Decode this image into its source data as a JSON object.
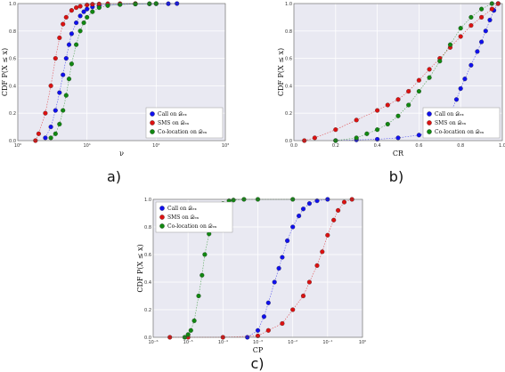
{
  "colors": {
    "call": "#1010ee",
    "sms": "#dd1111",
    "coloc": "#118811",
    "bg": "#e9e9f2",
    "grid": "#ffffff"
  },
  "captions": {
    "a": "a)",
    "b": "b)",
    "c": "c)"
  },
  "chart_data": [
    {
      "id": "a",
      "type": "scatter",
      "xscale": "log",
      "xlim": [
        1,
        1000
      ],
      "ylim": [
        0,
        1
      ],
      "xlabel": "ν",
      "ylabel": "CDF P(X ≤ x)",
      "xticks": [
        "10⁰",
        "10¹",
        "10²",
        "10³"
      ],
      "yticks": [
        "0.0",
        "0.2",
        "0.4",
        "0.6",
        "0.8",
        "1.0"
      ],
      "legend_position": "lower-right",
      "series": [
        {
          "name": "Call on 𝒟ₑₓ",
          "key": "call",
          "x": [
            2.5,
            3,
            3.5,
            4,
            4.5,
            5,
            5.5,
            6,
            7,
            8,
            9,
            10,
            12,
            15,
            20,
            30,
            50,
            80,
            100,
            150,
            200
          ],
          "y": [
            0.02,
            0.1,
            0.22,
            0.35,
            0.48,
            0.6,
            0.7,
            0.78,
            0.86,
            0.91,
            0.94,
            0.96,
            0.975,
            0.985,
            0.99,
            0.994,
            0.997,
            0.998,
            0.999,
            0.999,
            1.0
          ]
        },
        {
          "name": "SMS on 𝒟ₑₓ",
          "key": "sms",
          "x": [
            1.8,
            2,
            2.5,
            3,
            3.5,
            4,
            4.5,
            5,
            6,
            7,
            8,
            10,
            12,
            15,
            20,
            30,
            50
          ],
          "y": [
            0.0,
            0.05,
            0.2,
            0.4,
            0.6,
            0.75,
            0.85,
            0.9,
            0.95,
            0.97,
            0.98,
            0.99,
            0.995,
            0.997,
            0.999,
            0.9995,
            1.0
          ]
        },
        {
          "name": "Co-location on 𝒟ₑₓ",
          "key": "coloc",
          "x": [
            3,
            3.5,
            4,
            4.5,
            5,
            5.5,
            6,
            7,
            8,
            9,
            10,
            12,
            15,
            20,
            30,
            50,
            80,
            100
          ],
          "y": [
            0.02,
            0.05,
            0.12,
            0.22,
            0.33,
            0.45,
            0.56,
            0.7,
            0.8,
            0.86,
            0.9,
            0.94,
            0.97,
            0.985,
            0.993,
            0.997,
            0.999,
            1.0
          ]
        }
      ]
    },
    {
      "id": "b",
      "type": "scatter",
      "xscale": "linear",
      "xlim": [
        0,
        1
      ],
      "ylim": [
        0,
        1
      ],
      "xlabel": "CR",
      "ylabel": "CDF P(X ≤ x)",
      "xticks": [
        "0.0",
        "0.2",
        "0.4",
        "0.6",
        "0.8",
        "1.0"
      ],
      "yticks": [
        "0.0",
        "0.2",
        "0.4",
        "0.6",
        "0.8",
        "1.0"
      ],
      "legend_position": "lower-right",
      "series": [
        {
          "name": "Call on 𝒟ₑₓ",
          "key": "call",
          "x": [
            0.2,
            0.3,
            0.4,
            0.5,
            0.6,
            0.65,
            0.7,
            0.75,
            0.78,
            0.8,
            0.82,
            0.85,
            0.88,
            0.9,
            0.92,
            0.94,
            0.96,
            0.98
          ],
          "y": [
            0.0,
            0.005,
            0.01,
            0.02,
            0.04,
            0.06,
            0.1,
            0.2,
            0.3,
            0.38,
            0.45,
            0.55,
            0.65,
            0.72,
            0.8,
            0.88,
            0.95,
            1.0
          ]
        },
        {
          "name": "SMS on 𝒟ₑₓ",
          "key": "sms",
          "x": [
            0.05,
            0.1,
            0.2,
            0.3,
            0.4,
            0.45,
            0.5,
            0.55,
            0.6,
            0.65,
            0.7,
            0.75,
            0.8,
            0.85,
            0.9,
            0.95,
            0.98
          ],
          "y": [
            0.0,
            0.02,
            0.08,
            0.15,
            0.22,
            0.26,
            0.3,
            0.36,
            0.44,
            0.52,
            0.6,
            0.68,
            0.76,
            0.84,
            0.9,
            0.96,
            1.0
          ]
        },
        {
          "name": "Co-location on 𝒟ₑₓ",
          "key": "coloc",
          "x": [
            0.2,
            0.3,
            0.35,
            0.4,
            0.45,
            0.5,
            0.55,
            0.6,
            0.65,
            0.7,
            0.75,
            0.8,
            0.85,
            0.9,
            0.95
          ],
          "y": [
            0.0,
            0.02,
            0.05,
            0.08,
            0.12,
            0.18,
            0.26,
            0.36,
            0.46,
            0.58,
            0.7,
            0.82,
            0.9,
            0.96,
            1.0
          ]
        }
      ]
    },
    {
      "id": "c",
      "type": "scatter",
      "xscale": "log",
      "xlim": [
        1e-06,
        1
      ],
      "ylim": [
        0,
        1
      ],
      "xlabel": "CP",
      "ylabel": "CDF P(X ≤ x)",
      "xticks": [
        "10⁻⁶",
        "10⁻⁵",
        "10⁻⁴",
        "10⁻³",
        "10⁻²",
        "10⁻¹",
        "10⁰"
      ],
      "yticks": [
        "0.0",
        "0.2",
        "0.4",
        "0.6",
        "0.8",
        "1.0"
      ],
      "legend_position": "upper-left",
      "series": [
        {
          "name": "Call on 𝒟ₑₓ",
          "key": "call",
          "x": [
            0.0005,
            0.001,
            0.0015,
            0.002,
            0.003,
            0.004,
            0.005,
            0.007,
            0.01,
            0.015,
            0.02,
            0.03,
            0.05,
            0.1
          ],
          "y": [
            0.0,
            0.05,
            0.15,
            0.25,
            0.4,
            0.5,
            0.58,
            0.7,
            0.8,
            0.88,
            0.93,
            0.97,
            0.99,
            1.0
          ]
        },
        {
          "name": "SMS on 𝒟ₑₓ",
          "key": "sms",
          "x": [
            3e-06,
            1e-05,
            0.0001,
            0.001,
            0.002,
            0.005,
            0.01,
            0.02,
            0.03,
            0.05,
            0.07,
            0.1,
            0.15,
            0.2,
            0.3,
            0.5
          ],
          "y": [
            0.0,
            0.0,
            0.0,
            0.01,
            0.05,
            0.1,
            0.2,
            0.3,
            0.4,
            0.52,
            0.62,
            0.74,
            0.85,
            0.92,
            0.98,
            1.0
          ]
        },
        {
          "name": "Co-location on 𝒟ₑₓ",
          "key": "coloc",
          "x": [
            8e-06,
            1e-05,
            1.2e-05,
            1.5e-05,
            2e-05,
            2.5e-05,
            3e-05,
            4e-05,
            5e-05,
            7e-05,
            0.0001,
            0.00015,
            0.0002,
            0.0004,
            0.001,
            0.01
          ],
          "y": [
            0.0,
            0.02,
            0.05,
            0.12,
            0.3,
            0.45,
            0.6,
            0.75,
            0.85,
            0.93,
            0.97,
            0.99,
            0.995,
            1.0,
            1.0,
            1.0
          ]
        }
      ]
    }
  ]
}
